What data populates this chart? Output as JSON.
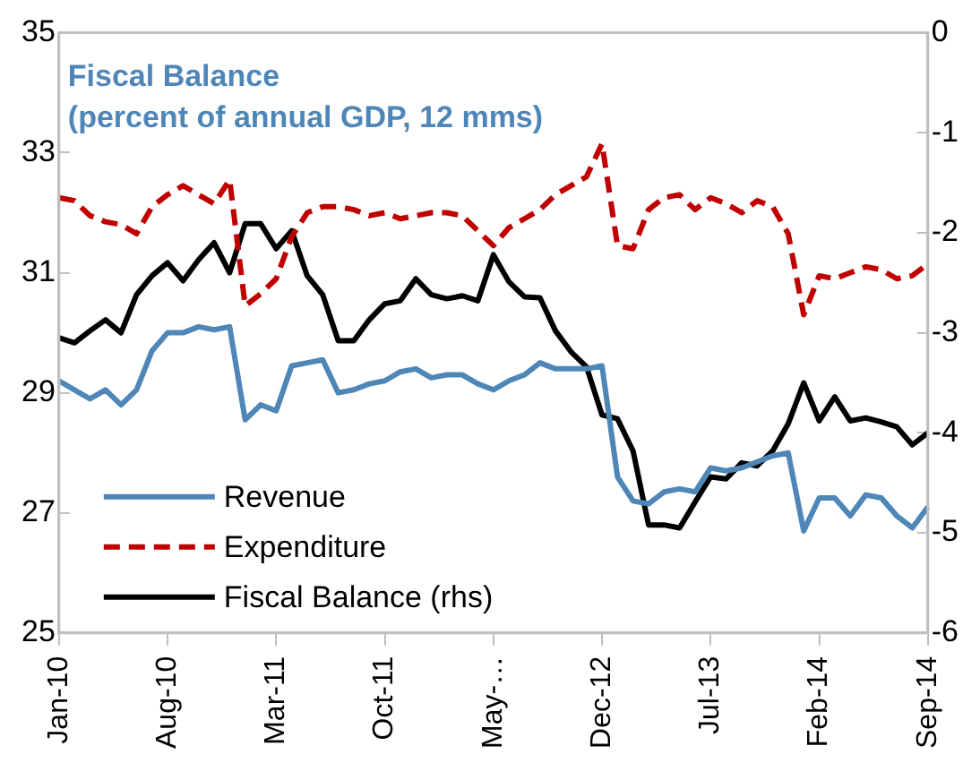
{
  "chart_data": {
    "type": "line",
    "title": "Fiscal Balance",
    "subtitle": "(percent of annual GDP, 12 mms)",
    "categories": [
      "Jan-10",
      null,
      null,
      null,
      null,
      null,
      null,
      "Aug-10",
      null,
      null,
      null,
      null,
      null,
      null,
      "Mar-11",
      null,
      null,
      null,
      null,
      null,
      null,
      "Oct-11",
      null,
      null,
      null,
      null,
      null,
      null,
      "May-…",
      null,
      null,
      null,
      null,
      null,
      null,
      "Dec-12",
      null,
      null,
      null,
      null,
      null,
      null,
      "Jul-13",
      null,
      null,
      null,
      null,
      null,
      null,
      "Feb-14",
      null,
      null,
      null,
      null,
      null,
      null,
      "Sep-14"
    ],
    "series": [
      {
        "name": "Revenue",
        "color": "#4f86b8",
        "line_style": "solid",
        "values": [
          29.2,
          29.05,
          28.9,
          29.05,
          28.8,
          29.05,
          29.7,
          30.0,
          30.0,
          30.1,
          30.05,
          30.1,
          28.55,
          28.8,
          28.7,
          29.45,
          29.5,
          29.55,
          29.0,
          29.05,
          29.15,
          29.2,
          29.35,
          29.4,
          29.25,
          29.3,
          29.3,
          29.15,
          29.05,
          29.2,
          29.3,
          29.5,
          29.4,
          29.4,
          29.4,
          29.45,
          27.6,
          27.2,
          27.15,
          27.35,
          27.4,
          27.35,
          27.75,
          27.7,
          27.75,
          27.85,
          27.95,
          28.0,
          26.7,
          27.25,
          27.25,
          26.95,
          27.3,
          27.25,
          26.95,
          26.75,
          27.1
        ]
      },
      {
        "name": "Expenditure",
        "color": "#c00000",
        "line_style": "dashed",
        "values": [
          32.25,
          32.2,
          31.95,
          31.85,
          31.8,
          31.65,
          32.1,
          32.3,
          32.45,
          32.3,
          32.15,
          32.55,
          30.45,
          30.65,
          30.9,
          31.6,
          32.0,
          32.1,
          32.1,
          32.05,
          31.95,
          32.0,
          31.9,
          31.95,
          32.0,
          32.0,
          31.95,
          31.7,
          31.45,
          31.75,
          31.9,
          32.05,
          32.3,
          32.45,
          32.6,
          33.15,
          31.45,
          31.4,
          32.05,
          32.25,
          32.3,
          32.05,
          32.25,
          32.15,
          32.0,
          32.2,
          32.1,
          31.65,
          30.3,
          30.95,
          30.9,
          31.0,
          31.1,
          31.05,
          30.9,
          30.95,
          31.15
        ]
      },
      {
        "name": "Fiscal Balance (rhs)",
        "color": "#000000",
        "line_style": "solid",
        "axis": "y2",
        "values": [
          -3.05,
          -3.1,
          -2.98,
          -2.87,
          -3.0,
          -2.62,
          -2.43,
          -2.3,
          -2.48,
          -2.27,
          -2.1,
          -2.4,
          -1.91,
          -1.91,
          -2.16,
          -1.98,
          -2.43,
          -2.62,
          -3.08,
          -3.08,
          -2.87,
          -2.71,
          -2.68,
          -2.46,
          -2.62,
          -2.66,
          -2.63,
          -2.68,
          -2.22,
          -2.49,
          -2.64,
          -2.65,
          -2.98,
          -3.19,
          -3.34,
          -3.82,
          -3.86,
          -4.18,
          -4.92,
          -4.92,
          -4.95,
          -4.69,
          -4.44,
          -4.46,
          -4.3,
          -4.33,
          -4.18,
          -3.91,
          -3.5,
          -3.88,
          -3.64,
          -3.88,
          -3.85,
          -3.89,
          -3.94,
          -4.12,
          -4.0
        ]
      }
    ],
    "ylim": [
      25,
      35
    ],
    "yticks": [
      25,
      27,
      29,
      31,
      33,
      35
    ],
    "y2lim": [
      -6,
      0
    ],
    "y2ticks": [
      -6,
      -5,
      -4,
      -3,
      -2,
      -1,
      0
    ],
    "grid": false,
    "legend": "bottom left",
    "marker": "none"
  }
}
